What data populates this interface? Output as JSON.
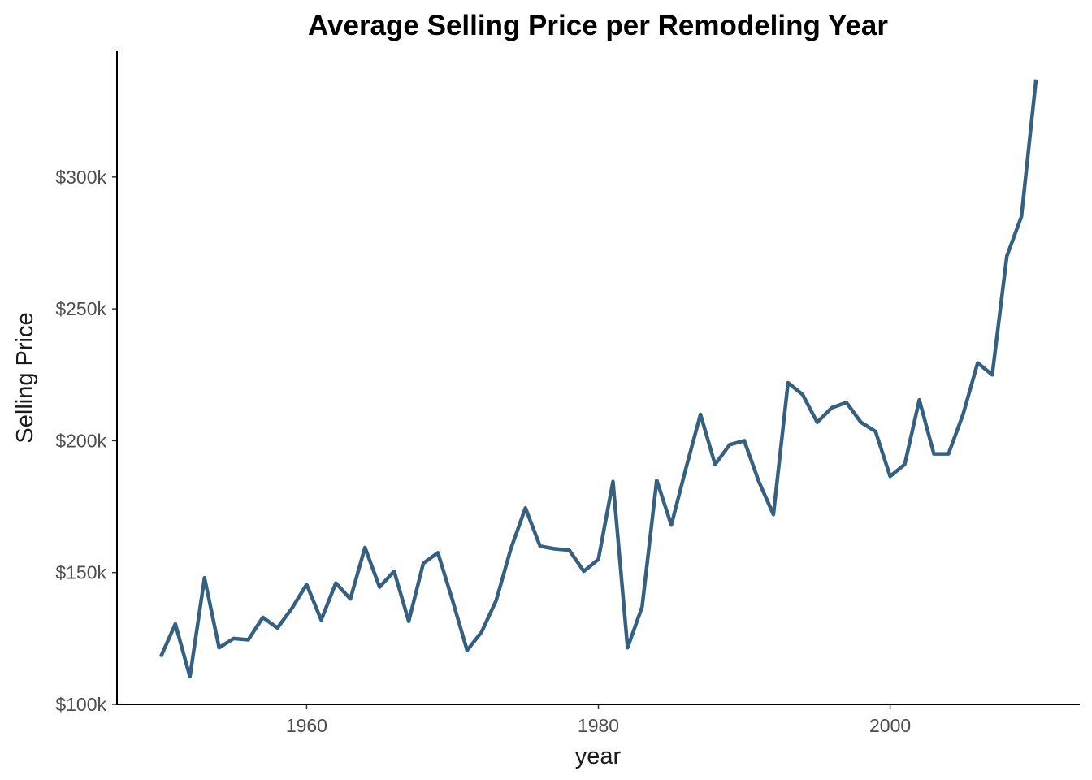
{
  "chart_data": {
    "type": "line",
    "title": "Average Selling Price per Remodeling Year",
    "xlabel": "year",
    "ylabel": "Selling Price",
    "xlim": [
      1947,
      2013
    ],
    "ylim": [
      100000,
      340000
    ],
    "x_ticks": [
      1960,
      1980,
      2000
    ],
    "x_tick_labels": [
      "1960",
      "1980",
      "2000"
    ],
    "y_ticks": [
      100000,
      150000,
      200000,
      250000,
      300000
    ],
    "y_tick_labels": [
      "$100k",
      "$150k",
      "$200k",
      "$250k",
      "$300k"
    ],
    "grid": false,
    "legend": "none",
    "series": [
      {
        "color": "#35607f",
        "x": [
          1950,
          1951,
          1952,
          1953,
          1954,
          1955,
          1956,
          1957,
          1958,
          1959,
          1960,
          1961,
          1962,
          1963,
          1964,
          1965,
          1966,
          1967,
          1968,
          1969,
          1970,
          1971,
          1972,
          1973,
          1974,
          1975,
          1976,
          1977,
          1978,
          1979,
          1980,
          1981,
          1982,
          1983,
          1984,
          1985,
          1986,
          1987,
          1988,
          1989,
          1990,
          1991,
          1992,
          1993,
          1994,
          1995,
          1996,
          1997,
          1998,
          1999,
          2000,
          2001,
          2002,
          2003,
          2004,
          2005,
          2006,
          2007,
          2008,
          2009,
          2010
        ],
        "y": [
          118000,
          130500,
          110500,
          148000,
          121500,
          125000,
          124500,
          133000,
          129000,
          136500,
          145500,
          132000,
          146000,
          140000,
          159500,
          144500,
          150500,
          131500,
          153500,
          157500,
          139500,
          120500,
          127500,
          139500,
          159000,
          174500,
          160000,
          159000,
          158500,
          150500,
          155000,
          184500,
          121500,
          137000,
          185000,
          168000,
          189500,
          210000,
          191000,
          198500,
          200000,
          184500,
          172000,
          222000,
          217500,
          207000,
          212500,
          214500,
          207000,
          203500,
          186500,
          191000,
          215500,
          195000,
          195000,
          210000,
          229500,
          225000,
          270000,
          285000,
          337000
        ]
      }
    ]
  }
}
